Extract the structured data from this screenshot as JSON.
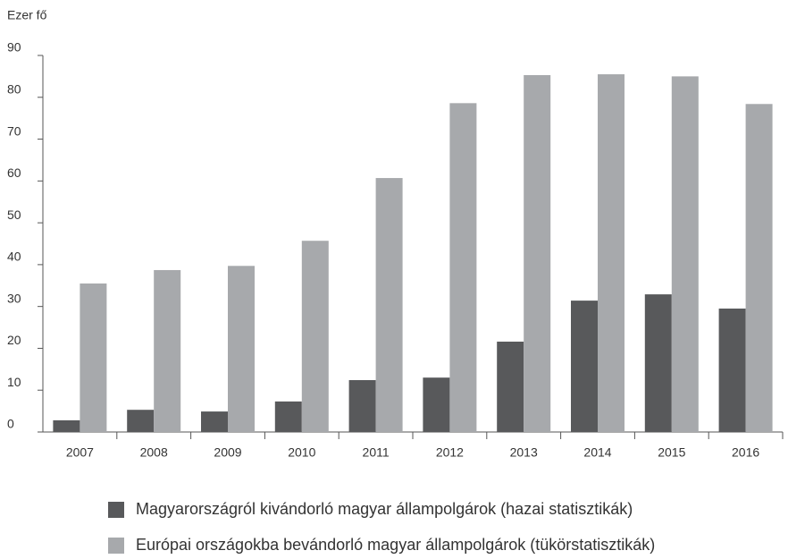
{
  "chart_data": {
    "type": "bar",
    "y_label": "Ezer fő",
    "categories": [
      "2007",
      "2008",
      "2009",
      "2010",
      "2011",
      "2012",
      "2013",
      "2014",
      "2015",
      "2016"
    ],
    "series": [
      {
        "name": "Magyarországról kivándorló magyar állampolgárok (hazai statisztikák)",
        "color": "#58595b",
        "values": [
          2.8,
          5.3,
          4.9,
          7.3,
          12.4,
          13.0,
          21.6,
          31.4,
          32.9,
          29.5
        ]
      },
      {
        "name": "Európai országokba bevándorló magyar állampolgárok (tükörstatisztikák)",
        "color": "#a7a9ac",
        "values": [
          35.5,
          38.7,
          39.7,
          45.7,
          60.7,
          78.6,
          85.3,
          85.5,
          85.0,
          78.4
        ]
      }
    ],
    "ylim": [
      0,
      90
    ],
    "yticks": [
      0,
      10,
      20,
      30,
      40,
      50,
      60,
      70,
      80,
      90
    ],
    "grid": false,
    "legend": "bottom"
  }
}
